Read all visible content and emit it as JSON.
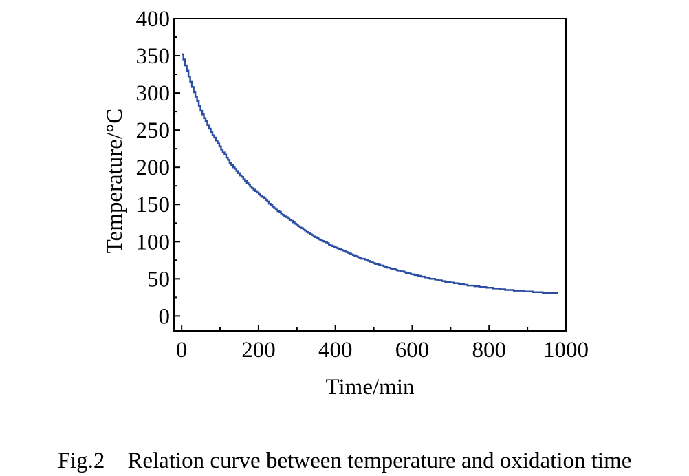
{
  "caption": "Fig.2    Relation curve between temperature and oxidation time",
  "chart_data": {
    "type": "line",
    "title": "",
    "xlabel": "Time/min",
    "ylabel": "Temperature/°C",
    "xlim": [
      -20,
      1000
    ],
    "ylim": [
      -20,
      400
    ],
    "xticks": [
      0,
      200,
      400,
      600,
      800,
      1000
    ],
    "yticks": [
      0,
      50,
      100,
      150,
      200,
      250,
      300,
      350,
      400
    ],
    "grid": false,
    "legend": "none",
    "series": [
      {
        "color": "#2b4ea2",
        "x": [
          0,
          25,
          50,
          75,
          100,
          125,
          150,
          175,
          200,
          250,
          300,
          350,
          400,
          450,
          500,
          550,
          600,
          650,
          700,
          750,
          800,
          850,
          900,
          950,
          980
        ],
        "y": [
          352,
          310,
          275,
          248,
          226,
          206,
          190,
          176,
          164,
          141,
          122,
          105,
          92,
          81,
          71,
          63,
          56,
          50,
          45,
          41,
          38,
          35,
          33,
          31,
          31
        ]
      }
    ]
  }
}
